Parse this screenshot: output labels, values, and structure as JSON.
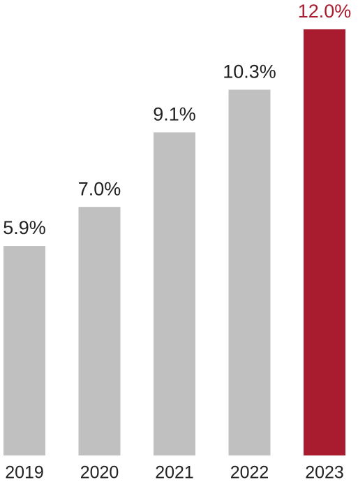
{
  "chart_data": {
    "type": "bar",
    "categories": [
      "2019",
      "2020",
      "2021",
      "2022",
      "2023"
    ],
    "values": [
      5.9,
      7.0,
      9.1,
      10.3,
      12.0
    ],
    "value_labels": [
      "5.9%",
      "7.0%",
      "9.1%",
      "10.3%",
      "12.0%"
    ],
    "colors": [
      "#c0c0c0",
      "#c0c0c0",
      "#c0c0c0",
      "#c0c0c0",
      "#a91b2e"
    ],
    "label_colors": [
      "#222222",
      "#222222",
      "#222222",
      "#222222",
      "#a91b2e"
    ]
  }
}
